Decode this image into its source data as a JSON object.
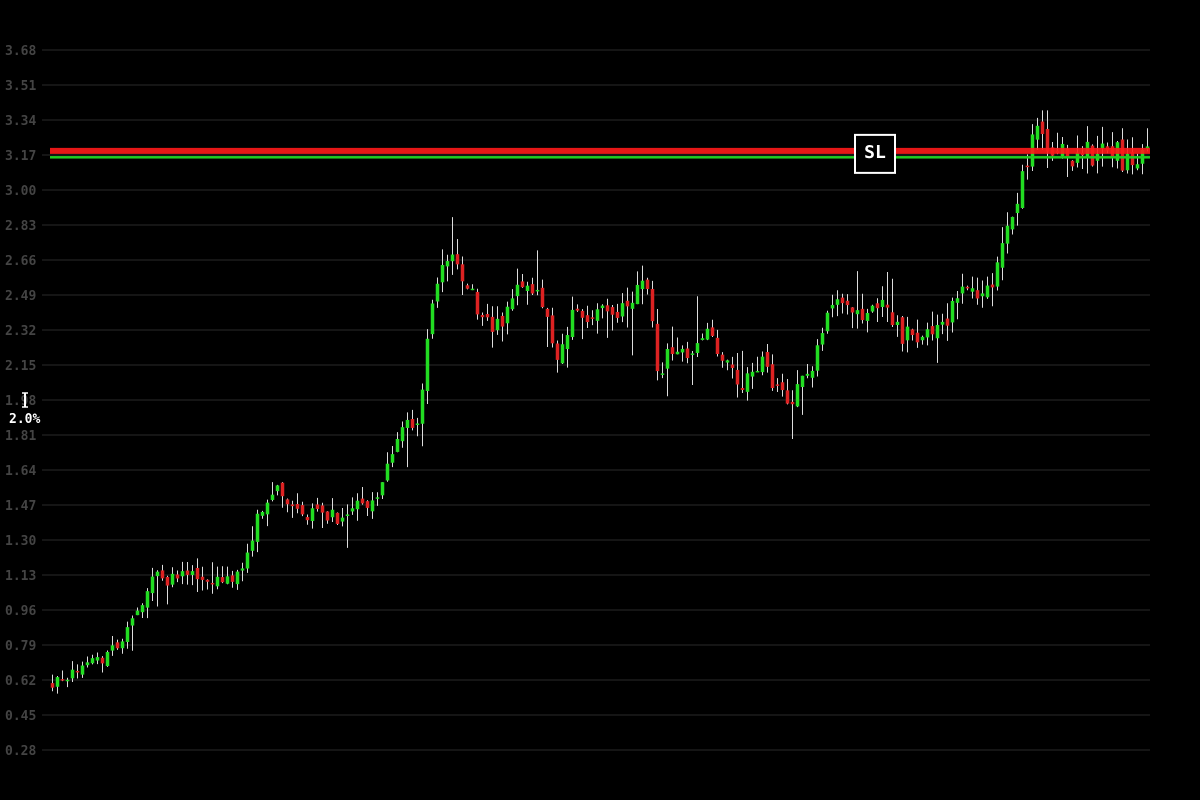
{
  "theme": {
    "background": "#000000",
    "grid": "#1c1c1c",
    "tick_color": "#444444",
    "up_color": "#22dd22",
    "down_color": "#dd2222",
    "wick_color": "#dddddd",
    "stop_loss_color": "#ff1a1a",
    "entry_color": "#22cc22",
    "marker_color": "#ffffff"
  },
  "chart_data": {
    "type": "candlestick",
    "title": "",
    "xlabel": "",
    "ylabel": "",
    "ylim": [
      0.2,
      3.76
    ],
    "grid": true,
    "legend": "none",
    "y_ticks": [
      3.68,
      3.51,
      3.34,
      3.17,
      3.0,
      2.83,
      2.66,
      2.49,
      2.32,
      2.15,
      1.98,
      1.81,
      1.64,
      1.47,
      1.3,
      1.13,
      0.96,
      0.79,
      0.62,
      0.45,
      0.28
    ],
    "y_tick_labels": [
      "3.68",
      "3.51",
      "3.34",
      "3.17",
      "3.00",
      "2.83",
      "2.66",
      "2.49",
      "2.32",
      "2.15",
      "1.98",
      "1.81",
      "1.64",
      "1.47",
      "1.30",
      "1.13",
      "0.96",
      "0.79",
      "0.62",
      "0.45",
      "0.28"
    ],
    "n_candles": 220,
    "close_path": [
      [
        0,
        0.6
      ],
      [
        6,
        0.63
      ],
      [
        12,
        0.71
      ],
      [
        18,
        0.72
      ],
      [
        22,
        0.8
      ],
      [
        26,
        0.86
      ],
      [
        30,
        0.98
      ],
      [
        34,
        1.12
      ],
      [
        38,
        1.1
      ],
      [
        42,
        1.15
      ],
      [
        48,
        1.11
      ],
      [
        54,
        1.1
      ],
      [
        58,
        1.12
      ],
      [
        62,
        1.13
      ],
      [
        66,
        1.38
      ],
      [
        70,
        1.5
      ],
      [
        74,
        1.56
      ],
      [
        78,
        1.45
      ],
      [
        82,
        1.37
      ],
      [
        86,
        1.46
      ],
      [
        90,
        1.42
      ],
      [
        94,
        1.38
      ],
      [
        98,
        1.48
      ],
      [
        102,
        1.46
      ],
      [
        106,
        1.56
      ],
      [
        110,
        1.78
      ],
      [
        114,
        1.87
      ],
      [
        118,
        1.88
      ],
      [
        122,
        2.42
      ],
      [
        126,
        2.7
      ],
      [
        130,
        2.66
      ],
      [
        134,
        2.52
      ],
      [
        138,
        2.35
      ],
      [
        142,
        2.32
      ],
      [
        146,
        2.42
      ],
      [
        150,
        2.55
      ],
      [
        154,
        2.52
      ],
      [
        158,
        2.4
      ],
      [
        162,
        2.15
      ],
      [
        166,
        2.38
      ],
      [
        170,
        2.42
      ],
      [
        174,
        2.36
      ],
      [
        178,
        2.45
      ],
      [
        182,
        2.4
      ],
      [
        186,
        2.5
      ],
      [
        188,
        2.58
      ],
      [
        192,
        2.42
      ],
      [
        194,
        2.1
      ],
      [
        198,
        2.25
      ],
      [
        202,
        2.2
      ],
      [
        206,
        2.27
      ],
      [
        210,
        2.3
      ],
      [
        214,
        2.18
      ],
      [
        218,
        2.08
      ],
      [
        220,
        2.05
      ]
    ],
    "close_path_tail": [
      [
        220,
        2.05
      ],
      [
        226,
        2.18
      ],
      [
        230,
        2.05
      ],
      [
        236,
        1.98
      ],
      [
        242,
        2.12
      ],
      [
        248,
        2.42
      ],
      [
        254,
        2.46
      ],
      [
        260,
        2.4
      ],
      [
        266,
        2.45
      ],
      [
        270,
        2.3
      ],
      [
        276,
        2.28
      ],
      [
        282,
        2.3
      ],
      [
        286,
        2.4
      ],
      [
        290,
        2.55
      ],
      [
        296,
        2.45
      ],
      [
        300,
        2.6
      ],
      [
        306,
        2.88
      ],
      [
        310,
        3.15
      ],
      [
        312,
        3.3
      ],
      [
        316,
        3.22
      ],
      [
        320,
        3.18
      ],
      [
        324,
        3.15
      ],
      [
        328,
        3.2
      ],
      [
        332,
        3.14
      ],
      [
        336,
        3.22
      ],
      [
        340,
        3.15
      ],
      [
        344,
        3.12
      ],
      [
        348,
        3.16
      ]
    ],
    "stop_loss": {
      "label": "SL",
      "value": 3.19
    },
    "entry_level": {
      "value": 3.16
    },
    "percent_marker": {
      "label": "2.0%",
      "value": 1.98
    }
  }
}
